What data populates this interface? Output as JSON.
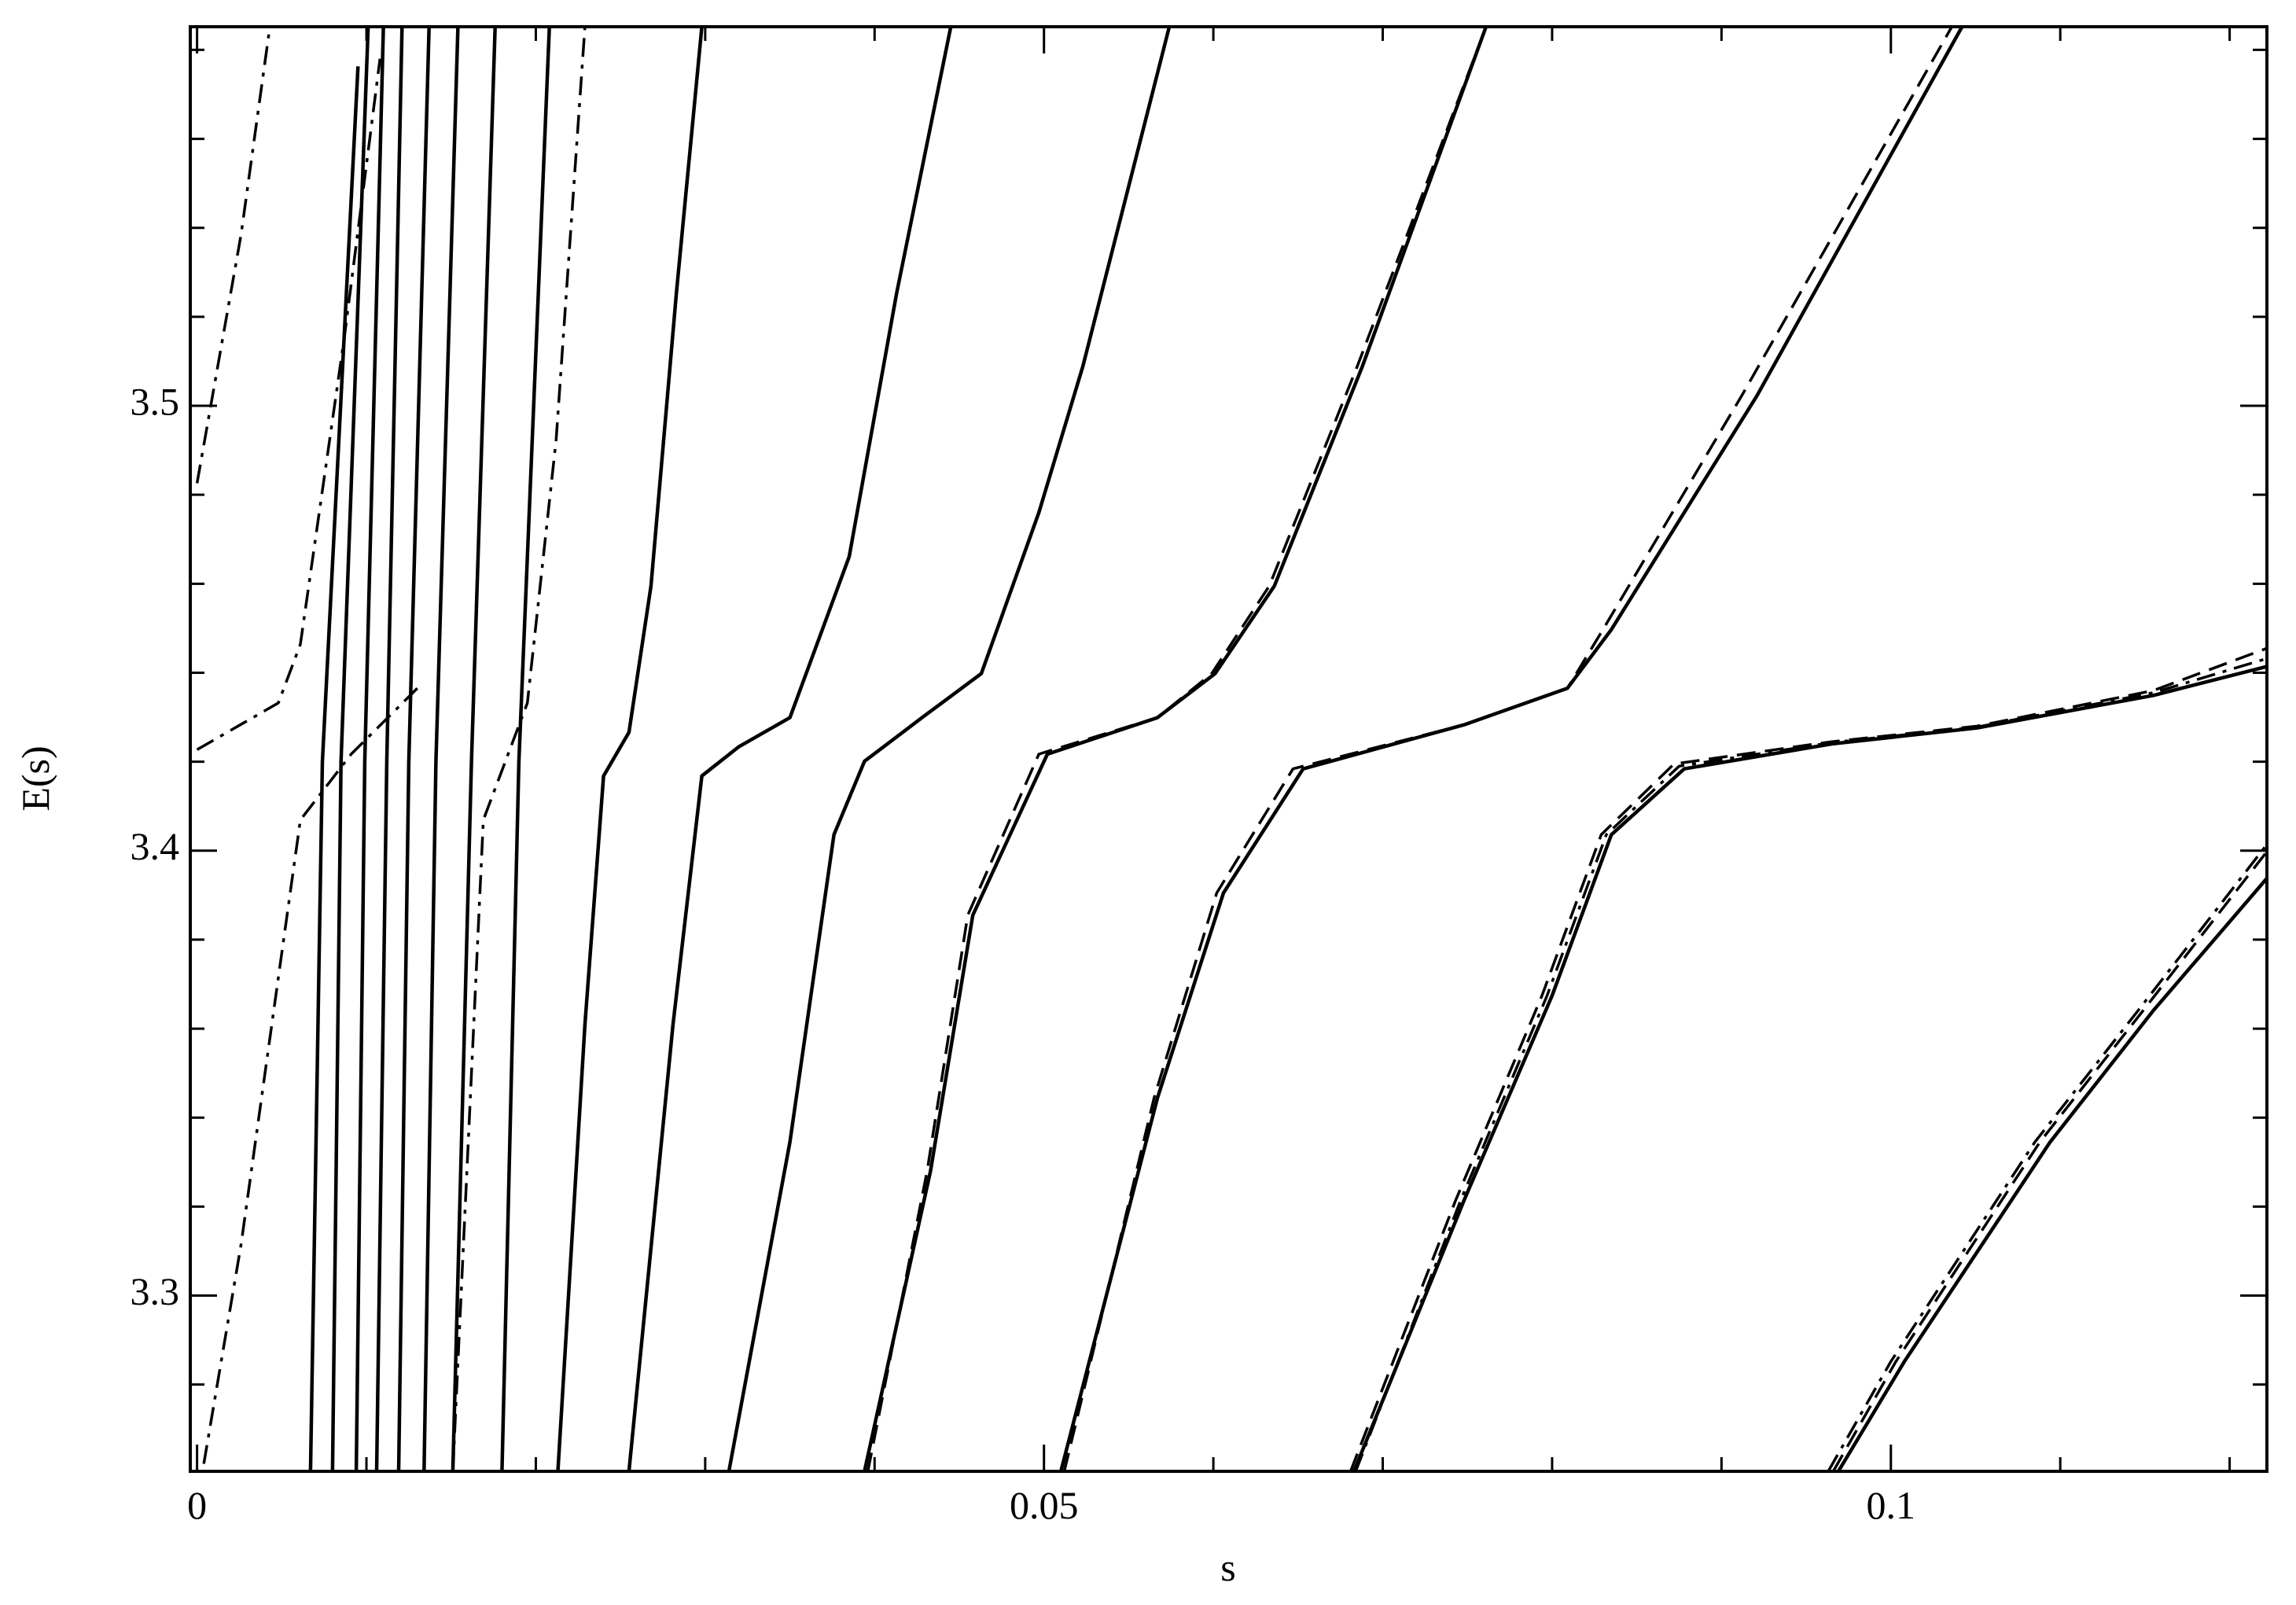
{
  "chart_data": {
    "type": "line",
    "x_label": "s",
    "y_label": "E(s)",
    "xlim": [
      -0.0004,
      0.1222
    ],
    "ylim": [
      3.2605,
      3.5852
    ],
    "xticks": [
      0,
      0.05,
      0.1
    ],
    "yticks": [
      3.3,
      3.4,
      3.5
    ],
    "xminor": [
      0.01,
      0.02,
      0.03,
      0.04,
      0.06,
      0.07,
      0.08,
      0.09,
      0.11,
      0.12
    ],
    "yminor": [
      3.28,
      3.32,
      3.34,
      3.36,
      3.38,
      3.42,
      3.44,
      3.46,
      3.48,
      3.52,
      3.54,
      3.56,
      3.58
    ],
    "series": [
      {
        "color": "#000000",
        "dash": "solid",
        "x": [
          0.0969,
          0.1008,
          0.1094,
          0.1155,
          0.1222
        ],
        "values": [
          3.2605,
          3.2852,
          3.3345,
          3.3641,
          3.3938
        ]
      },
      {
        "color": "#000000",
        "dash": "solid",
        "x": [
          0.0683,
          0.0748,
          0.08,
          0.0835,
          0.0878,
          0.0965,
          0.1051,
          0.1155,
          0.1222
        ],
        "values": [
          3.2605,
          3.3214,
          3.3674,
          3.4036,
          3.4184,
          3.424,
          3.4276,
          3.4349,
          3.4414
        ]
      },
      {
        "color": "#000000",
        "dash": "solid",
        "x": [
          0.051,
          0.0567,
          0.0606,
          0.0653,
          0.0748,
          0.0809,
          0.0835,
          0.0921,
          0.1042
        ],
        "values": [
          3.2605,
          3.3444,
          3.3905,
          3.4184,
          3.4283,
          3.4365,
          3.4497,
          3.5023,
          3.5852
        ]
      },
      {
        "color": "#000000",
        "dash": "solid",
        "x": [
          0.0394,
          0.0433,
          0.0458,
          0.0502,
          0.0567,
          0.0601,
          0.0636,
          0.0688,
          0.0761
        ],
        "values": [
          3.2605,
          3.328,
          3.3855,
          3.4217,
          3.4299,
          3.4398,
          3.4595,
          3.5089,
          3.5852
        ]
      },
      {
        "color": "#000000",
        "dash": "solid",
        "x": [
          0.0314,
          0.035,
          0.0376,
          0.0394,
          0.0428,
          0.0463,
          0.0497,
          0.0523,
          0.0574
        ],
        "values": [
          3.2605,
          3.3345,
          3.4036,
          3.4201,
          3.4299,
          3.4398,
          3.476,
          3.5089,
          3.5852
        ]
      },
      {
        "color": "#000000",
        "dash": "solid",
        "x": [
          0.0255,
          0.0281,
          0.0298,
          0.032,
          0.035,
          0.0385,
          0.0413,
          0.0445
        ],
        "values": [
          3.2605,
          3.3609,
          3.4168,
          3.4234,
          3.4299,
          3.4661,
          3.5253,
          3.5852
        ]
      },
      {
        "color": "#000000",
        "dash": "solid",
        "x": [
          0.0213,
          0.0229,
          0.024,
          0.0255,
          0.0268,
          0.0283,
          0.0298
        ],
        "values": [
          3.2605,
          3.3609,
          3.4168,
          3.4266,
          3.4595,
          3.5253,
          3.5852
        ]
      },
      {
        "color": "#000000",
        "dash": "solid",
        "x": [
          0.018,
          0.019,
          0.0208
        ],
        "values": [
          3.2605,
          3.42,
          3.5852
        ]
      },
      {
        "color": "#000000",
        "dash": "solid",
        "x": [
          0.0151,
          0.0162,
          0.0176
        ],
        "values": [
          3.2605,
          3.42,
          3.5852
        ]
      },
      {
        "color": "#000000",
        "dash": "solid",
        "x": [
          0.0134,
          0.0141,
          0.0154
        ],
        "values": [
          3.2605,
          3.42,
          3.5852
        ]
      },
      {
        "color": "#000000",
        "dash": "solid",
        "x": [
          0.0119,
          0.0125,
          0.0137
        ],
        "values": [
          3.2605,
          3.42,
          3.5852
        ]
      },
      {
        "color": "#000000",
        "dash": "solid",
        "x": [
          0.0106,
          0.0112,
          0.0121
        ],
        "values": [
          3.2605,
          3.42,
          3.5852
        ]
      },
      {
        "color": "#000000",
        "dash": "solid",
        "x": [
          0.0094,
          0.0099,
          0.011
        ],
        "values": [
          3.2605,
          3.42,
          3.5852
        ]
      },
      {
        "color": "#000000",
        "dash": "solid",
        "x": [
          0.008,
          0.0085,
          0.0101
        ],
        "values": [
          3.2605,
          3.42,
          3.5852
        ]
      },
      {
        "color": "#000000",
        "dash": "solid",
        "x": [
          0.0067,
          0.0074,
          0.0095
        ],
        "values": [
          3.2605,
          3.42,
          3.5763
        ]
      },
      {
        "color": "#000000",
        "dash": "dashed",
        "x": [
          0.0966,
          0.1003,
          0.1088,
          0.1149,
          0.1222
        ],
        "values": [
          3.2605,
          3.2852,
          3.3345,
          3.3641,
          3.3998
        ]
      },
      {
        "color": "#000000",
        "dash": "dashed",
        "x": [
          0.0681,
          0.0743,
          0.0794,
          0.0829,
          0.0872,
          0.0965,
          0.1051,
          0.1155,
          0.1222
        ],
        "values": [
          3.2605,
          3.3214,
          3.3674,
          3.4036,
          3.4195,
          3.4245,
          3.428,
          3.436,
          3.4455
        ]
      },
      {
        "color": "#000000",
        "dash": "dashed",
        "x": [
          0.0512,
          0.0565,
          0.0602,
          0.0647,
          0.0748,
          0.0809,
          0.083,
          0.0912,
          0.1036
        ],
        "values": [
          3.2605,
          3.3444,
          3.3905,
          3.4184,
          3.4283,
          3.4365,
          3.4497,
          3.5023,
          3.5852
        ]
      },
      {
        "color": "#000000",
        "dash": "dashed",
        "x": [
          0.0396,
          0.0431,
          0.0455,
          0.0497,
          0.0567,
          0.0599,
          0.0633,
          0.0685,
          0.0761
        ],
        "values": [
          3.2605,
          3.328,
          3.3855,
          3.4217,
          3.4299,
          3.4398,
          3.4595,
          3.5089,
          3.5852
        ]
      },
      {
        "color": "#000000",
        "dash": "dashdot",
        "x": [
          0.0963,
          0.1,
          0.1085,
          0.1146,
          0.1222
        ],
        "values": [
          3.2605,
          3.2852,
          3.3345,
          3.3641,
          3.4014
        ]
      },
      {
        "color": "#000000",
        "dash": "dashdot",
        "x": [
          0.0684,
          0.0746,
          0.0797,
          0.0832,
          0.0875,
          0.0965,
          0.1051,
          0.1155,
          0.1222
        ],
        "values": [
          3.2605,
          3.3214,
          3.3674,
          3.4036,
          3.419,
          3.4243,
          3.4278,
          3.4355,
          3.4432
        ]
      },
      {
        "color": "#000000",
        "dash": "dashdot",
        "x": [
          0.0004,
          0.0026,
          0.0061,
          0.0091,
          0.013
        ],
        "values": [
          3.2622,
          3.3115,
          3.4069,
          3.4217,
          3.4365
        ]
      },
      {
        "color": "#000000",
        "dash": "dashdot",
        "x": [
          0.0,
          0.0048,
          0.0061,
          0.0087,
          0.0108
        ],
        "values": [
          3.4227,
          3.4332,
          3.4464,
          3.5155,
          3.578
        ]
      },
      {
        "color": "#000000",
        "dash": "dashdot",
        "x": [
          0.0,
          0.0026,
          0.0043
        ],
        "values": [
          3.4826,
          3.5385,
          3.5852
        ]
      },
      {
        "color": "#000000",
        "dash": "dashdot",
        "x": [
          0.0151,
          0.0169,
          0.0195,
          0.0212,
          0.0229
        ],
        "values": [
          3.2605,
          3.4069,
          3.4332,
          3.4924,
          3.5852
        ]
      }
    ]
  }
}
